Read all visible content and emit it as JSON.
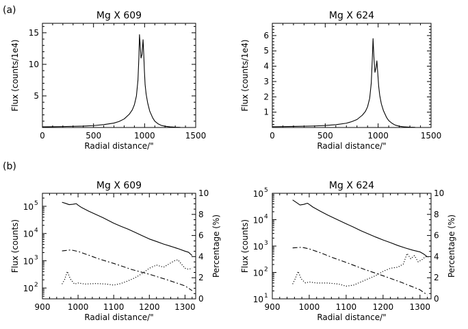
{
  "panel_labels": [
    "(a)",
    "(b)"
  ],
  "chart_data": [
    {
      "type": "line",
      "panel": "(a)",
      "title": "Mg X 609",
      "xlabel": "Radial distance/\"",
      "ylabel": "Flux (counts/1e4)",
      "xlim": [
        0,
        1500
      ],
      "ylim": [
        0,
        16.5
      ],
      "yscale": "linear",
      "x_ticks": [
        0,
        500,
        1000,
        1500
      ],
      "y_ticks": [
        5,
        10,
        15
      ],
      "grid": false,
      "series": [
        {
          "style": "solid",
          "x": [
            0,
            200,
            400,
            500,
            600,
            700,
            750,
            800,
            850,
            880,
            900,
            920,
            935,
            945,
            950,
            955,
            965,
            975,
            985,
            992,
            998,
            1005,
            1015,
            1030,
            1050,
            1080,
            1100,
            1130,
            1160,
            1200,
            1250,
            1300,
            1350
          ],
          "y": [
            0.1,
            0.15,
            0.22,
            0.3,
            0.45,
            0.7,
            0.95,
            1.35,
            2.1,
            2.8,
            3.6,
            5.0,
            7.5,
            11.5,
            14.7,
            13.5,
            11.0,
            11.6,
            13.9,
            11.5,
            9.0,
            6.8,
            5.3,
            3.9,
            2.6,
            1.5,
            1.0,
            0.6,
            0.35,
            0.2,
            0.1,
            0.05,
            0.02
          ]
        }
      ]
    },
    {
      "type": "line",
      "panel": "(a)",
      "title": "Mg X 624",
      "xlabel": "Radial distance/\"",
      "ylabel": "Flux (counts/1e4)",
      "xlim": [
        0,
        1500
      ],
      "ylim": [
        0,
        6.8
      ],
      "yscale": "linear",
      "x_ticks": [
        0,
        500,
        1000,
        1500
      ],
      "y_ticks": [
        1,
        2,
        3,
        4,
        5,
        6
      ],
      "grid": false,
      "series": [
        {
          "style": "solid",
          "x": [
            0,
            200,
            400,
            500,
            600,
            700,
            750,
            800,
            850,
            880,
            900,
            920,
            935,
            945,
            952,
            960,
            970,
            980,
            988,
            995,
            1005,
            1015,
            1030,
            1050,
            1080,
            1100,
            1130,
            1160,
            1200,
            1250,
            1300,
            1350
          ],
          "y": [
            0.05,
            0.07,
            0.1,
            0.13,
            0.18,
            0.28,
            0.38,
            0.52,
            0.8,
            1.05,
            1.35,
            1.9,
            2.9,
            4.5,
            5.8,
            4.6,
            3.6,
            3.9,
            4.35,
            3.7,
            2.7,
            2.1,
            1.55,
            1.1,
            0.65,
            0.45,
            0.28,
            0.16,
            0.08,
            0.04,
            0.02,
            0.01
          ]
        }
      ]
    },
    {
      "type": "line",
      "panel": "(b)",
      "title": "Mg X 609",
      "xlabel": "Radial distance/\"",
      "ylabel": "Flux (counts)",
      "y2label": "Percentage (%)",
      "xlim": [
        900,
        1330
      ],
      "ylim": [
        40,
        300000
      ],
      "yscale": "log",
      "y2lim": [
        0,
        10
      ],
      "x_ticks": [
        900,
        1000,
        1100,
        1200,
        1300
      ],
      "y_ticks": [
        100,
        1000,
        10000,
        100000
      ],
      "y_tick_labels": [
        "10^2",
        "10^3",
        "10^4",
        "10^5"
      ],
      "y2_ticks": [
        0,
        2,
        4,
        6,
        8,
        10
      ],
      "grid": false,
      "series": [
        {
          "style": "solid",
          "axis": "left",
          "x": [
            955,
            965,
            975,
            985,
            995,
            1000,
            1010,
            1030,
            1050,
            1070,
            1100,
            1120,
            1140,
            1160,
            1180,
            1200,
            1220,
            1240,
            1260,
            1280,
            1300,
            1310,
            1320
          ],
          "y": [
            140000,
            128000,
            115000,
            118000,
            125000,
            110000,
            90000,
            66000,
            50000,
            38000,
            24000,
            18500,
            14500,
            11000,
            8300,
            6300,
            5100,
            4100,
            3400,
            2800,
            2250,
            2050,
            1550
          ]
        },
        {
          "style": "dashdot",
          "axis": "left",
          "x": [
            955,
            980,
            1000,
            1030,
            1060,
            1100,
            1150,
            1200,
            1250,
            1300,
            1320
          ],
          "y": [
            2300,
            2500,
            2200,
            1600,
            1150,
            800,
            480,
            320,
            200,
            120,
            80
          ]
        },
        {
          "style": "dotted",
          "axis": "right",
          "x": [
            955,
            962,
            970,
            978,
            990,
            1000,
            1020,
            1050,
            1080,
            1100,
            1120,
            1140,
            1160,
            1180,
            1200,
            1220,
            1240,
            1260,
            1270,
            1280,
            1290,
            1300,
            1310,
            1320
          ],
          "y": [
            1.4,
            1.8,
            2.6,
            1.9,
            1.4,
            1.5,
            1.4,
            1.45,
            1.4,
            1.3,
            1.45,
            1.7,
            2.0,
            2.4,
            2.9,
            3.2,
            3.0,
            3.4,
            3.6,
            3.7,
            3.3,
            2.9,
            2.8,
            2.9
          ]
        }
      ]
    },
    {
      "type": "line",
      "panel": "(b)",
      "title": "Mg X 624",
      "xlabel": "Radial distance/\"",
      "ylabel": "Flux (counts)",
      "y2label": "Percentage (%)",
      "xlim": [
        900,
        1330
      ],
      "ylim": [
        10,
        100000
      ],
      "yscale": "log",
      "y2lim": [
        0,
        10
      ],
      "x_ticks": [
        900,
        1000,
        1100,
        1200,
        1300
      ],
      "y_ticks": [
        10,
        100,
        1000,
        10000,
        100000
      ],
      "y_tick_labels": [
        "10^1",
        "10^2",
        "10^3",
        "10^4",
        "10^5"
      ],
      "y2_ticks": [
        0,
        2,
        4,
        6,
        8,
        10
      ],
      "grid": false,
      "series": [
        {
          "style": "solid",
          "axis": "left",
          "x": [
            955,
            965,
            975,
            985,
            995,
            1000,
            1010,
            1030,
            1050,
            1070,
            1100,
            1120,
            1140,
            1160,
            1180,
            1200,
            1220,
            1240,
            1260,
            1280,
            1300,
            1310,
            1320
          ],
          "y": [
            56000,
            45000,
            36000,
            38000,
            42000,
            38000,
            30000,
            21000,
            15000,
            11000,
            7000,
            5200,
            3800,
            2900,
            2200,
            1700,
            1350,
            1050,
            850,
            700,
            600,
            500,
            390
          ]
        },
        {
          "style": "dashdot",
          "axis": "left",
          "x": [
            955,
            980,
            1000,
            1030,
            1060,
            1100,
            1150,
            1200,
            1250,
            1300,
            1320
          ],
          "y": [
            850,
            900,
            780,
            560,
            380,
            240,
            130,
            75,
            42,
            22,
            14
          ]
        },
        {
          "style": "dotted",
          "axis": "right",
          "x": [
            955,
            962,
            970,
            978,
            990,
            1000,
            1020,
            1050,
            1080,
            1100,
            1120,
            1140,
            1160,
            1180,
            1200,
            1220,
            1240,
            1255,
            1265,
            1275,
            1285,
            1295,
            1305,
            1315,
            1322
          ],
          "y": [
            1.4,
            1.9,
            2.6,
            1.9,
            1.5,
            1.6,
            1.5,
            1.5,
            1.4,
            1.2,
            1.3,
            1.6,
            1.9,
            2.2,
            2.6,
            2.9,
            3.0,
            3.3,
            4.3,
            3.8,
            4.1,
            3.5,
            3.7,
            4.0,
            3.9
          ]
        }
      ]
    }
  ]
}
